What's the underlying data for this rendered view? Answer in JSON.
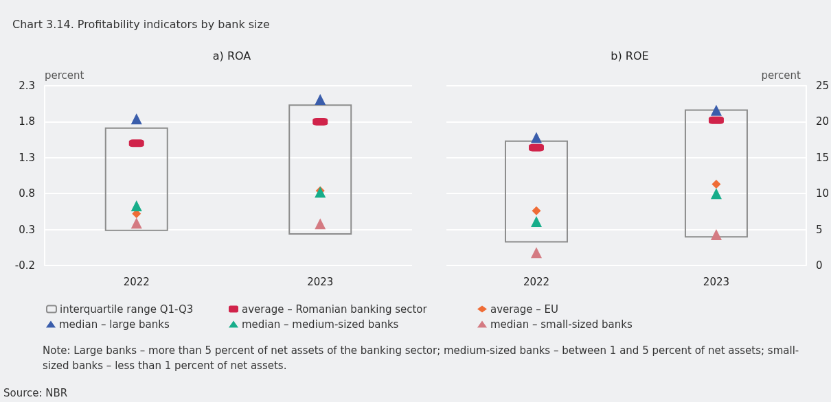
{
  "chart_data": [
    {
      "type": "bar",
      "title": "a) ROA",
      "ylabel": "percent",
      "categories": [
        "2022",
        "2023"
      ],
      "ylim": [
        -0.2,
        2.3
      ],
      "yticks": [
        -0.2,
        0.3,
        0.8,
        1.3,
        1.8,
        2.3
      ],
      "grid": "y",
      "legend": "bottom",
      "annotations": [
        "Chart 3.14. Profitability indicators by bank size",
        "Note: Large banks – more than 5 percent of net assets of the banking sector; medium-sized banks – between 1 and 5 percent of net assets; small-sized banks – less than 1 percent of net assets.",
        "Source: NBR"
      ],
      "series": [
        {
          "name": "interquartile range Q1-Q3",
          "color": "#8c8c8c",
          "base": [
            0.28,
            0.23
          ],
          "values": [
            1.44,
            1.81
          ]
        },
        {
          "type": "scatter",
          "name": "average – Romanian banking sector",
          "color": "#d0234a",
          "marker": "square",
          "values": [
            1.5,
            1.8
          ]
        },
        {
          "type": "scatter",
          "name": "average – EU",
          "color": "#ef6c36",
          "marker": "diamond",
          "values": [
            0.52,
            0.84
          ]
        },
        {
          "type": "scatter",
          "name": "median – large banks",
          "color": "#3a5dab",
          "marker": "triangle",
          "values": [
            1.84,
            2.11
          ]
        },
        {
          "type": "scatter",
          "name": "median – medium-sized banks",
          "color": "#17ad8a",
          "marker": "triangle",
          "values": [
            0.63,
            0.82
          ]
        },
        {
          "type": "scatter",
          "name": "median – small-sized banks",
          "color": "#d47a82",
          "marker": "triangle",
          "values": [
            0.39,
            0.38
          ]
        }
      ]
    },
    {
      "type": "bar",
      "title": "b) ROE",
      "y2label": "percent",
      "categories": [
        "2022",
        "2023"
      ],
      "y2lim": [
        0,
        25
      ],
      "y2ticks": [
        0,
        5,
        10,
        15,
        20,
        25
      ],
      "grid": "y",
      "series": [
        {
          "axis": "y2",
          "color": "#8c8c8c",
          "base": [
            3.2,
            3.9
          ],
          "values": [
            14.2,
            17.8
          ]
        },
        {
          "type": "scatter",
          "axis": "y2",
          "color": "#d0234a",
          "marker": "square",
          "values": [
            16.4,
            20.2
          ]
        },
        {
          "type": "scatter",
          "axis": "y2",
          "color": "#ef6c36",
          "marker": "diamond",
          "values": [
            7.6,
            11.3
          ]
        },
        {
          "type": "scatter",
          "axis": "y2",
          "color": "#3a5dab",
          "marker": "triangle",
          "values": [
            17.8,
            21.6
          ]
        },
        {
          "type": "scatter",
          "axis": "y2",
          "color": "#17ad8a",
          "marker": "triangle",
          "values": [
            6.1,
            10.0
          ]
        },
        {
          "type": "scatter",
          "axis": "y2",
          "color": "#d47a82",
          "marker": "triangle",
          "values": [
            1.8,
            4.3
          ]
        }
      ]
    }
  ]
}
